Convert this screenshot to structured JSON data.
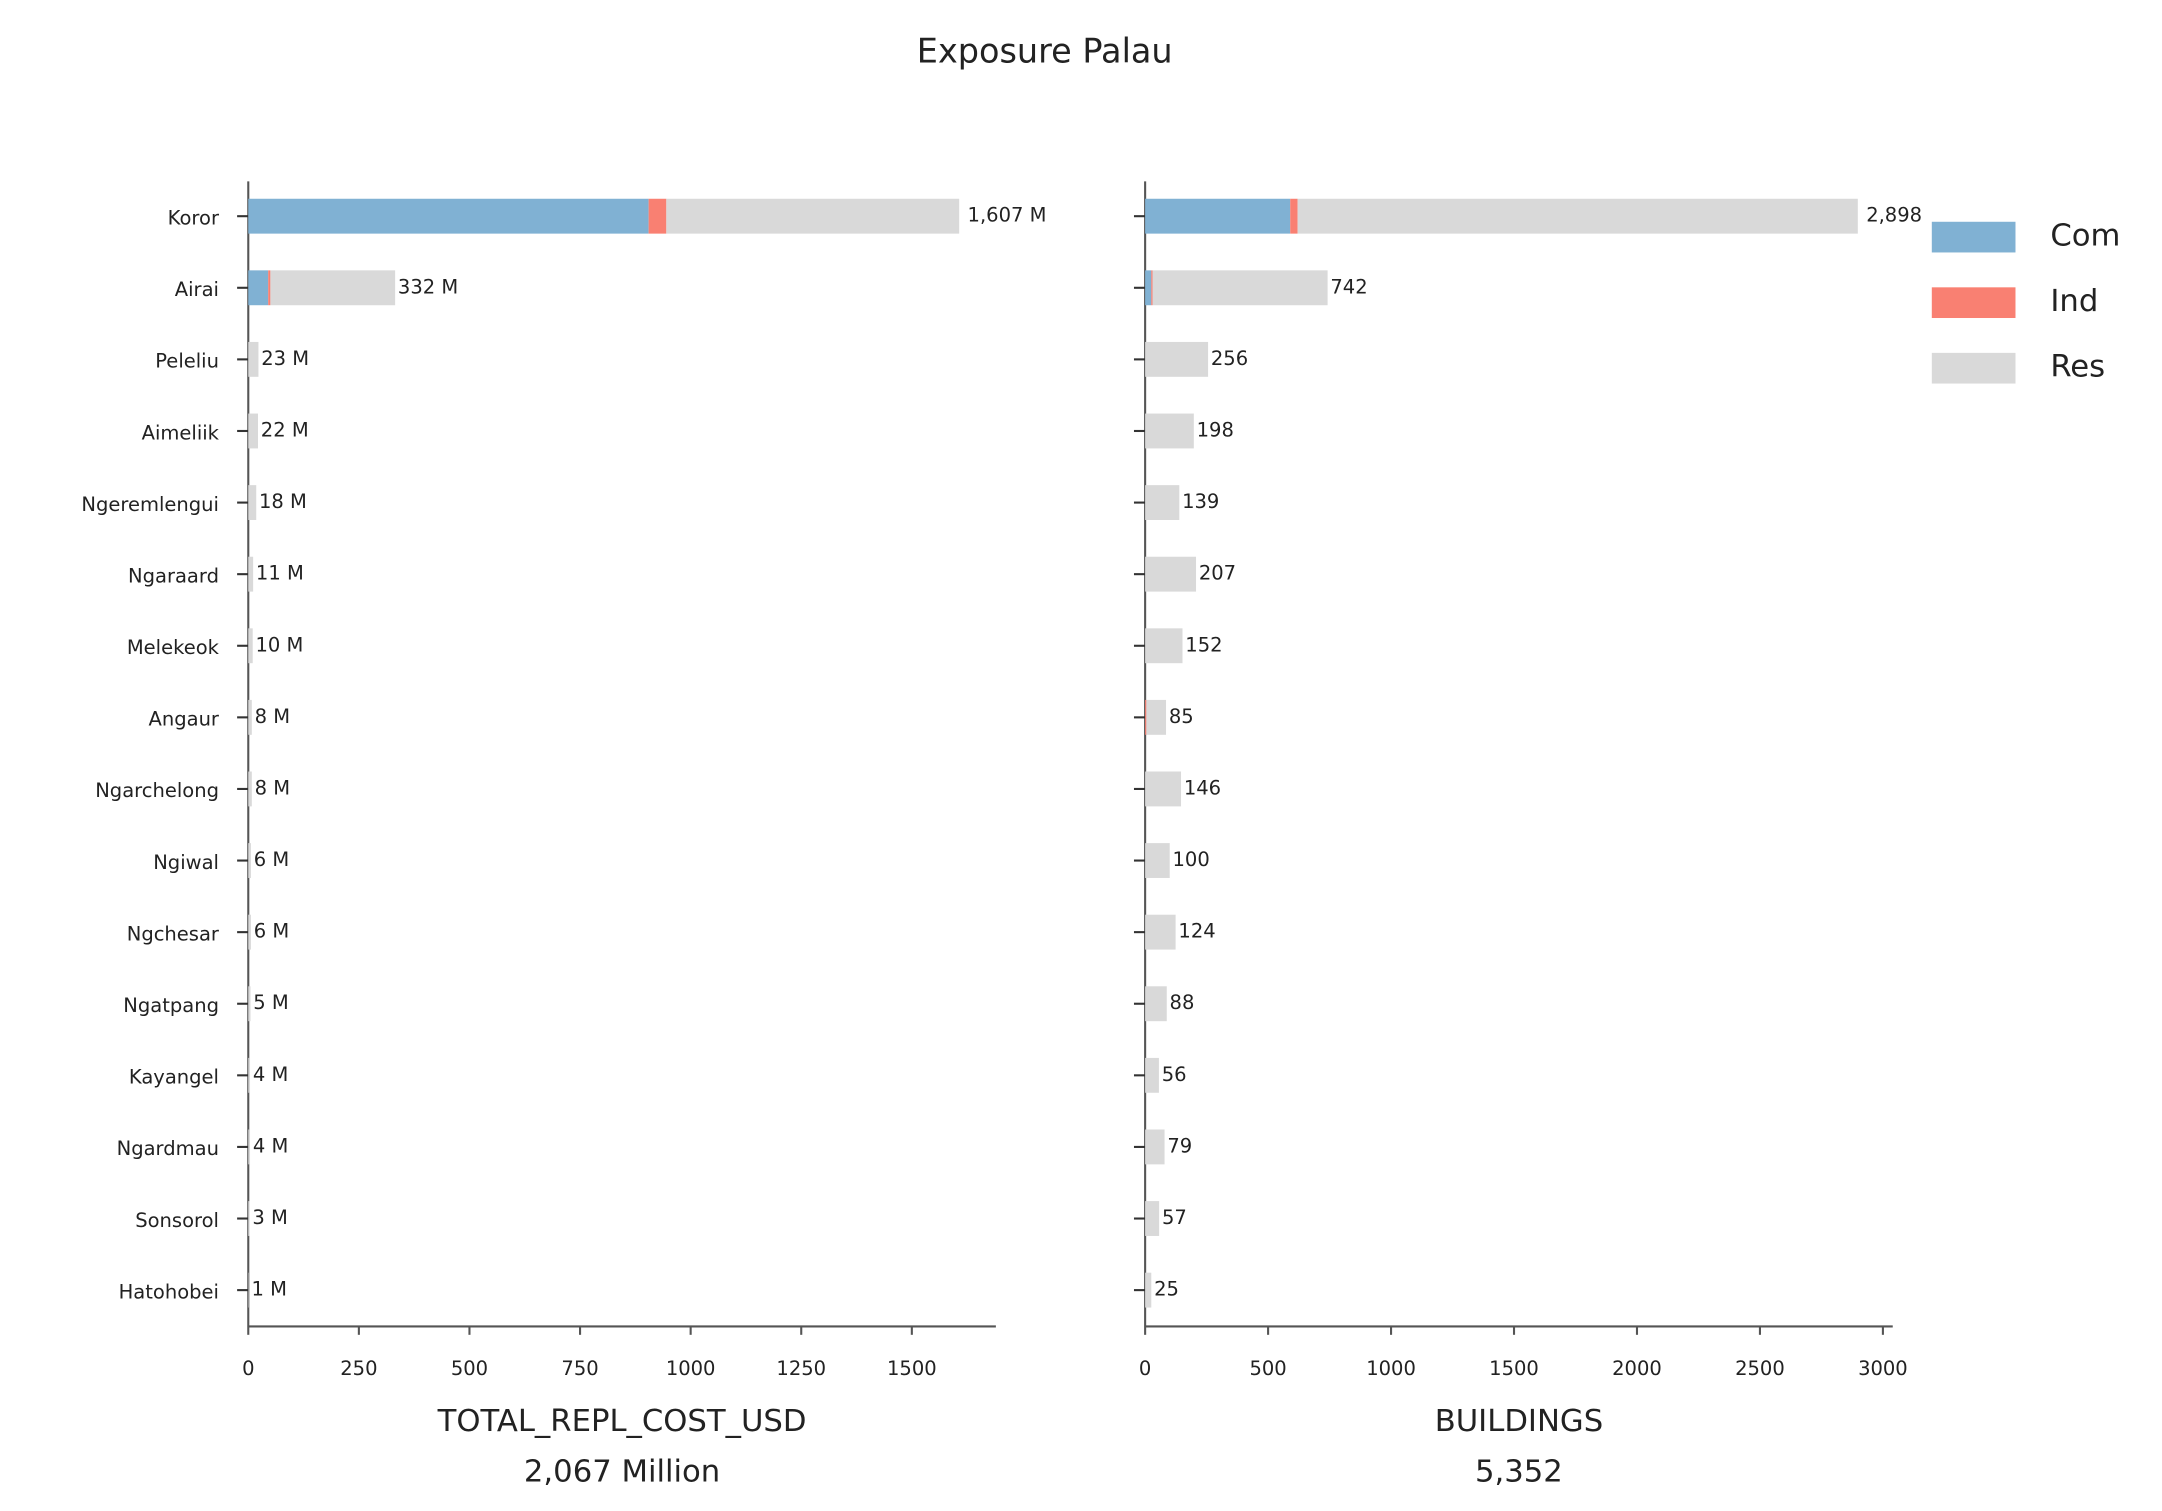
{
  "title": "Exposure Palau",
  "chart_data": [
    {
      "type": "stacked-barh",
      "categories": [
        "Koror",
        "Airai",
        "Peleliu",
        "Aimeliik",
        "Ngeremlengui",
        "Ngaraard",
        "Melekeok",
        "Angaur",
        "Ngarchelong",
        "Ngiwal",
        "Ngchesar",
        "Ngatpang",
        "Kayangel",
        "Ngardmau",
        "Sonsorol",
        "Hatohobei"
      ],
      "series": [
        {
          "color": "#80b1d3",
          "values": [
            905,
            45,
            0,
            0,
            0,
            0,
            0,
            0,
            0,
            0,
            0,
            0,
            0,
            0,
            0,
            0
          ]
        },
        {
          "color": "#f98072",
          "values": [
            40,
            5,
            0,
            0,
            0,
            0,
            0,
            0,
            0,
            0,
            0,
            0,
            0,
            0,
            0,
            0
          ]
        },
        {
          "color": "#d9d9d9",
          "values": [
            662,
            282,
            23,
            22,
            18,
            11,
            10,
            8,
            8,
            6,
            6,
            5,
            4,
            4,
            3,
            1
          ]
        }
      ],
      "totals": {
        "values": [
          1607,
          332,
          23,
          22,
          18,
          11,
          10,
          8,
          8,
          6,
          6,
          5,
          4,
          4,
          3,
          1
        ],
        "value_labels": [
          "1,607 M",
          "332 M",
          "23 M",
          "22 M",
          "18 M",
          "11 M",
          "10 M",
          "8 M",
          "8 M",
          "6 M",
          "6 M",
          "5 M",
          "4 M",
          "4 M",
          "3 M",
          "1 M"
        ]
      },
      "xlim": [
        0,
        1690
      ],
      "xticks": [
        0,
        250,
        500,
        750,
        1000,
        1250,
        1500
      ],
      "xlabel": "TOTAL_REPL_COST_USD",
      "xlabel_sub": "2,067 Million"
    },
    {
      "type": "stacked-barh",
      "series": [
        {
          "name": "Com",
          "color": "#80b1d3",
          "values": [
            590,
            25,
            0,
            0,
            0,
            0,
            0,
            0,
            0,
            0,
            0,
            0,
            0,
            0,
            0,
            0
          ]
        },
        {
          "name": "Ind",
          "color": "#f98072",
          "values": [
            30,
            5,
            0,
            0,
            0,
            0,
            0,
            5,
            0,
            0,
            0,
            0,
            0,
            0,
            0,
            0
          ]
        },
        {
          "name": "Res",
          "color": "#d9d9d9",
          "values": [
            2278,
            712,
            256,
            198,
            139,
            207,
            152,
            80,
            146,
            100,
            124,
            88,
            56,
            79,
            57,
            25
          ]
        }
      ],
      "totals": {
        "values": [
          2898,
          742,
          256,
          198,
          139,
          207,
          152,
          85,
          146,
          100,
          124,
          88,
          56,
          79,
          57,
          25
        ],
        "value_labels": [
          "2,898",
          "742",
          "256",
          "198",
          "139",
          "207",
          "152",
          "85",
          "146",
          "100",
          "124",
          "88",
          "56",
          "79",
          "57",
          "25"
        ]
      },
      "xlim": [
        0,
        3040
      ],
      "xticks": [
        0,
        500,
        1000,
        1500,
        2000,
        2500,
        3000
      ],
      "xlabel": "BUILDINGS",
      "xlabel_sub": "5,352",
      "legend": "upper right outside"
    }
  ]
}
